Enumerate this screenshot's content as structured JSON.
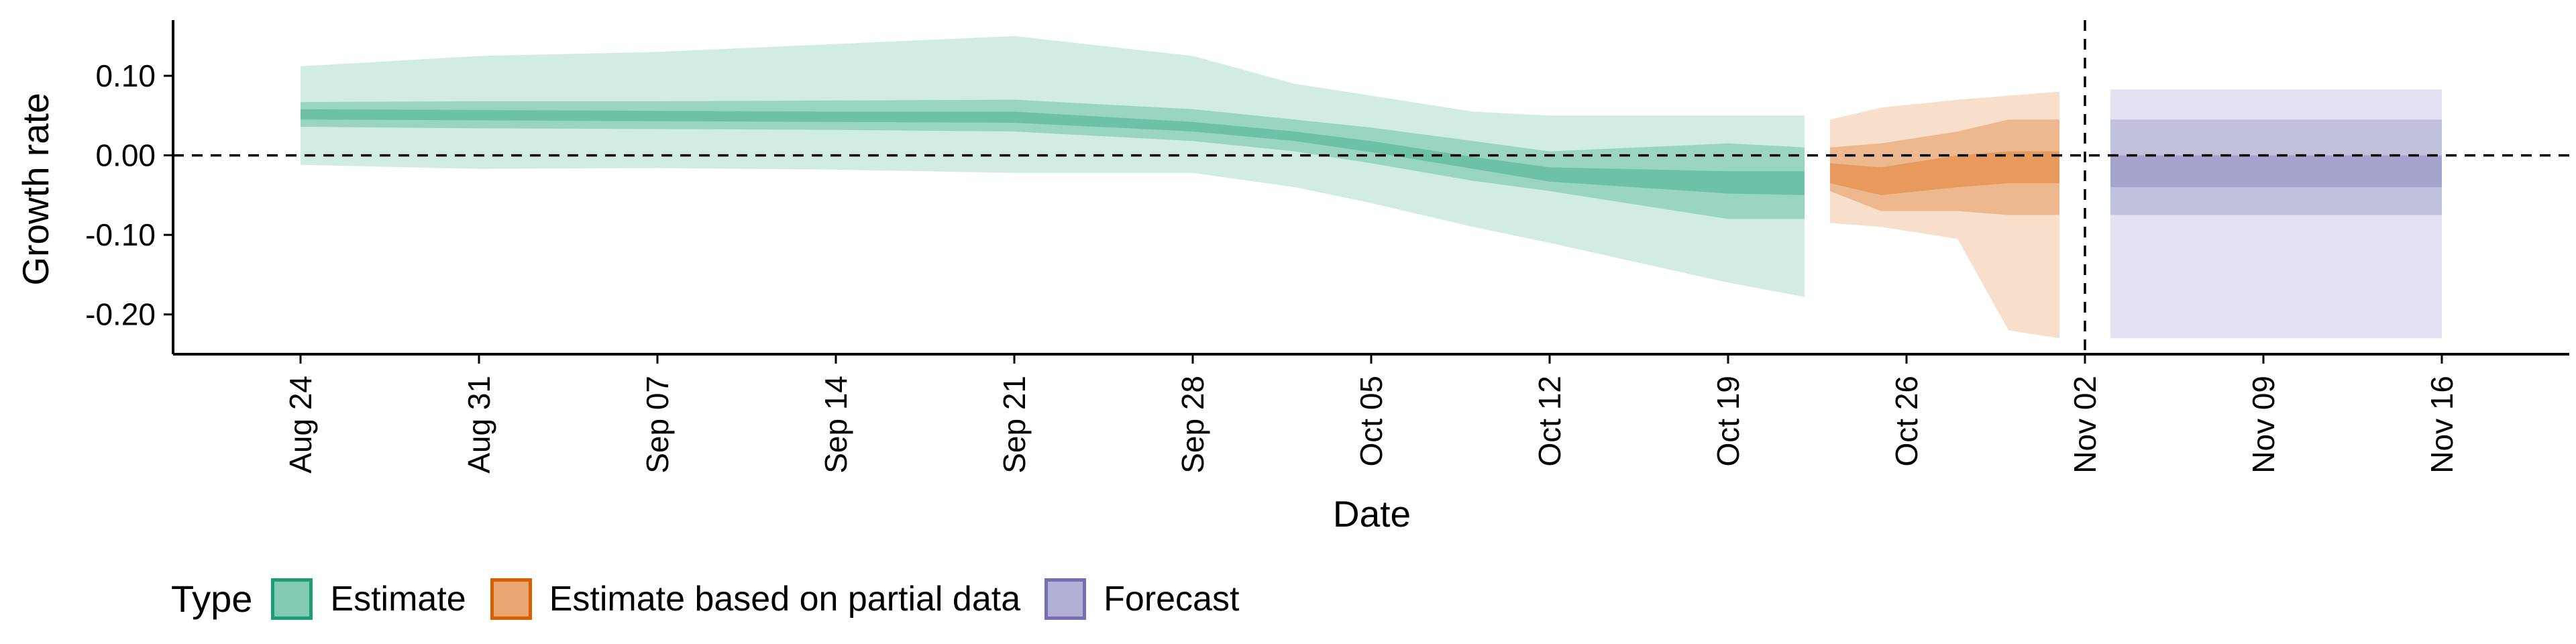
{
  "chart_data": {
    "type": "area",
    "xlabel": "Date",
    "ylabel": "Growth rate",
    "x_axis": {
      "type": "date",
      "range": [
        "2020-08-19",
        "2020-11-21"
      ],
      "ticks": [
        "2020-08-24",
        "2020-08-31",
        "2020-09-07",
        "2020-09-14",
        "2020-09-21",
        "2020-09-28",
        "2020-10-05",
        "2020-10-12",
        "2020-10-19",
        "2020-10-26",
        "2020-11-02",
        "2020-11-09",
        "2020-11-16"
      ],
      "tick_labels": [
        "Aug 24",
        "Aug 31",
        "Sep 07",
        "Sep 14",
        "Sep 21",
        "Sep 28",
        "Oct 05",
        "Oct 12",
        "Oct 19",
        "Oct 26",
        "Nov 02",
        "Nov 09",
        "Nov 16"
      ]
    },
    "y_axis": {
      "range": [
        -0.25,
        0.17
      ],
      "ticks": [
        0.1,
        0.0,
        -0.1,
        -0.2
      ],
      "tick_labels": [
        "0.10",
        "0.00",
        "-0.10",
        "-0.20"
      ]
    },
    "reference_lines": {
      "horizontal_y": 0.0,
      "vertical_x": "2020-11-02"
    },
    "grid": false,
    "legend": {
      "position": "bottom-left",
      "title": "Type",
      "entries": [
        "Estimate",
        "Estimate based on partial data",
        "Forecast"
      ]
    },
    "series": [
      {
        "name": "Estimate",
        "color": "#1b9e77",
        "points": [
          {
            "x": "2020-08-24",
            "lo90": -0.012,
            "lo50": 0.036,
            "lo20": 0.045,
            "hi20": 0.058,
            "hi50": 0.067,
            "hi90": 0.112
          },
          {
            "x": "2020-08-31",
            "lo90": -0.017,
            "lo50": 0.034,
            "lo20": 0.044,
            "hi20": 0.057,
            "hi50": 0.068,
            "hi90": 0.125
          },
          {
            "x": "2020-09-07",
            "lo90": -0.016,
            "lo50": 0.033,
            "lo20": 0.043,
            "hi20": 0.056,
            "hi50": 0.068,
            "hi90": 0.13
          },
          {
            "x": "2020-09-14",
            "lo90": -0.018,
            "lo50": 0.032,
            "lo20": 0.042,
            "hi20": 0.055,
            "hi50": 0.069,
            "hi90": 0.14
          },
          {
            "x": "2020-09-21",
            "lo90": -0.022,
            "lo50": 0.03,
            "lo20": 0.041,
            "hi20": 0.055,
            "hi50": 0.07,
            "hi90": 0.15
          },
          {
            "x": "2020-09-28",
            "lo90": -0.022,
            "lo50": 0.018,
            "lo20": 0.03,
            "hi20": 0.042,
            "hi50": 0.058,
            "hi90": 0.125
          },
          {
            "x": "2020-10-02",
            "lo90": -0.04,
            "lo50": 0.005,
            "lo20": 0.018,
            "hi20": 0.03,
            "hi50": 0.045,
            "hi90": 0.09
          },
          {
            "x": "2020-10-05",
            "lo90": -0.06,
            "lo50": -0.01,
            "lo20": 0.004,
            "hi20": 0.018,
            "hi50": 0.035,
            "hi90": 0.075
          },
          {
            "x": "2020-10-09",
            "lo90": -0.09,
            "lo50": -0.032,
            "lo20": -0.017,
            "hi20": -0.002,
            "hi50": 0.018,
            "hi90": 0.055
          },
          {
            "x": "2020-10-12",
            "lo90": -0.11,
            "lo50": -0.045,
            "lo20": -0.033,
            "hi20": -0.015,
            "hi50": 0.005,
            "hi90": 0.05
          },
          {
            "x": "2020-10-19",
            "lo90": -0.16,
            "lo50": -0.08,
            "lo20": -0.048,
            "hi20": -0.02,
            "hi50": 0.015,
            "hi90": 0.05
          },
          {
            "x": "2020-10-22",
            "lo90": -0.178,
            "lo50": -0.08,
            "lo20": -0.05,
            "hi20": -0.02,
            "hi50": 0.01,
            "hi90": 0.05
          }
        ]
      },
      {
        "name": "Estimate based on partial data",
        "color": "#d95f02",
        "points": [
          {
            "x": "2020-10-23",
            "lo90": -0.085,
            "lo50": -0.045,
            "lo20": -0.035,
            "hi20": -0.01,
            "hi50": 0.01,
            "hi90": 0.045
          },
          {
            "x": "2020-10-25",
            "lo90": -0.09,
            "lo50": -0.07,
            "lo20": -0.05,
            "hi20": -0.015,
            "hi50": 0.015,
            "hi90": 0.06
          },
          {
            "x": "2020-10-28",
            "lo90": -0.105,
            "lo50": -0.07,
            "lo20": -0.04,
            "hi20": 0.0,
            "hi50": 0.03,
            "hi90": 0.07
          },
          {
            "x": "2020-10-30",
            "lo90": -0.22,
            "lo50": -0.075,
            "lo20": -0.035,
            "hi20": 0.005,
            "hi50": 0.045,
            "hi90": 0.075
          },
          {
            "x": "2020-11-01",
            "lo90": -0.23,
            "lo50": -0.075,
            "lo20": -0.035,
            "hi20": 0.005,
            "hi50": 0.045,
            "hi90": 0.08
          }
        ]
      },
      {
        "name": "Forecast",
        "color": "#7570b3",
        "points": [
          {
            "x": "2020-11-03",
            "lo90": -0.23,
            "lo50": -0.075,
            "lo20": -0.04,
            "hi20": 0.0,
            "hi50": 0.045,
            "hi90": 0.083
          },
          {
            "x": "2020-11-16",
            "lo90": -0.23,
            "lo50": -0.075,
            "lo20": -0.04,
            "hi20": 0.0,
            "hi50": 0.045,
            "hi90": 0.083
          }
        ]
      }
    ]
  }
}
